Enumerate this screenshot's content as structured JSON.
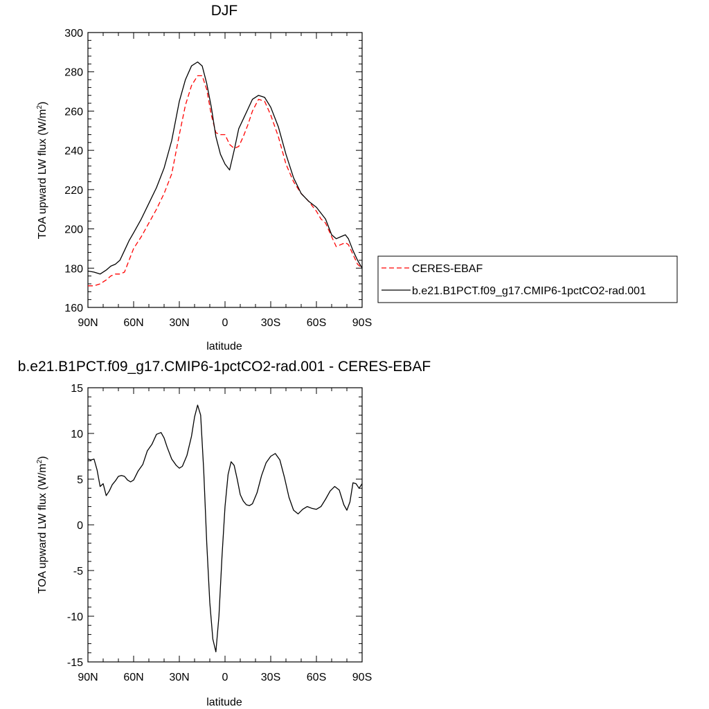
{
  "chart_data": [
    {
      "type": "line",
      "title": "DJF",
      "xlabel": "latitude",
      "ylabel": "TOA upward LW flux (W/m",
      "ylabel_sup": "2",
      "ylabel_close": ")",
      "xlim": [
        90,
        -90
      ],
      "ylim": [
        160,
        300
      ],
      "x_ticks": [
        90,
        60,
        30,
        0,
        -30,
        -60,
        -90
      ],
      "x_tick_labels": [
        "90N",
        "60N",
        "30N",
        "0",
        "30S",
        "60S",
        "90S"
      ],
      "y_ticks": [
        160,
        180,
        200,
        220,
        240,
        260,
        280,
        300
      ],
      "y_tick_labels": [
        "160",
        "180",
        "200",
        "220",
        "240",
        "260",
        "280",
        "300"
      ],
      "legend": "right",
      "series": [
        {
          "name": "CERES-EBAF",
          "color": "#ff0000",
          "dash": "dashed",
          "x": [
            90,
            86,
            82,
            78,
            75,
            72,
            69,
            66,
            63,
            60,
            55,
            50,
            45,
            40,
            35,
            30,
            26,
            22,
            18,
            15,
            12,
            9,
            6,
            3,
            0,
            -3,
            -6,
            -9,
            -12,
            -15,
            -18,
            -22,
            -26,
            -30,
            -35,
            -40,
            -45,
            -50,
            -55,
            -60,
            -63,
            -66,
            -70,
            -73,
            -76,
            -79,
            -81,
            -84,
            -87,
            -90
          ],
          "y": [
            171,
            171,
            172,
            174,
            176,
            177,
            177,
            178,
            184,
            190,
            196,
            203,
            210,
            218,
            228,
            248,
            263,
            273,
            278,
            278,
            271,
            258,
            249,
            248,
            248,
            243,
            241,
            242,
            247,
            253,
            260,
            266,
            265,
            258,
            247,
            233,
            224,
            218,
            214,
            209,
            205,
            203,
            196,
            191,
            192,
            193,
            192,
            187,
            182,
            180
          ]
        },
        {
          "name": "b.e21.B1PCT.f09_g17.CMIP6-1pctCO2-rad.001",
          "color": "#000000",
          "dash": "solid",
          "x": [
            90,
            86,
            82,
            78,
            75,
            72,
            69,
            66,
            63,
            60,
            55,
            50,
            45,
            40,
            35,
            30,
            26,
            22,
            18,
            15,
            12,
            9,
            6,
            3,
            0,
            -3,
            -6,
            -9,
            -12,
            -15,
            -18,
            -22,
            -26,
            -30,
            -35,
            -40,
            -45,
            -50,
            -55,
            -60,
            -63,
            -66,
            -70,
            -73,
            -76,
            -79,
            -81,
            -84,
            -87,
            -90
          ],
          "y": [
            178.5,
            178,
            177,
            179,
            181,
            182,
            184,
            189,
            194,
            198,
            205,
            213,
            221,
            231,
            245,
            265,
            276,
            283,
            285,
            283,
            274,
            262,
            247,
            238,
            233,
            230,
            240,
            251,
            256,
            261,
            266,
            268,
            267,
            262,
            252,
            238,
            226,
            218,
            214,
            211,
            208,
            205,
            197,
            195,
            196,
            197,
            195,
            189,
            184,
            180
          ]
        }
      ]
    },
    {
      "type": "line",
      "title": "b.e21.B1PCT.f09_g17.CMIP6-1pctCO2-rad.001 - CERES-EBAF",
      "xlabel": "latitude",
      "ylabel": "TOA upward LW flux (W/m",
      "ylabel_sup": "2",
      "ylabel_close": ")",
      "xlim": [
        90,
        -90
      ],
      "ylim": [
        -15,
        15
      ],
      "x_ticks": [
        90,
        60,
        30,
        0,
        -30,
        -60,
        -90
      ],
      "x_tick_labels": [
        "90N",
        "60N",
        "30N",
        "0",
        "30S",
        "60S",
        "90S"
      ],
      "y_ticks": [
        -15,
        -10,
        -5,
        0,
        5,
        10,
        15
      ],
      "y_tick_labels": [
        "-15",
        "-10",
        "-5",
        "0",
        "5",
        "10",
        "15"
      ],
      "series": [
        {
          "color": "#000000",
          "dash": "solid",
          "x": [
            90,
            88,
            86,
            84,
            82,
            80,
            78,
            76,
            74,
            72,
            70,
            68,
            66,
            64,
            62,
            60,
            57,
            54,
            51,
            48,
            45,
            42,
            40,
            38,
            35,
            32,
            30,
            28,
            25,
            22,
            20,
            18,
            16,
            14,
            12,
            10,
            8,
            6,
            4,
            2,
            0,
            -2,
            -4,
            -6,
            -8,
            -10,
            -12,
            -14,
            -16,
            -18,
            -21,
            -24,
            -27,
            -30,
            -33,
            -36,
            -39,
            -42,
            -45,
            -48,
            -51,
            -54,
            -57,
            -60,
            -63,
            -66,
            -69,
            -72,
            -75,
            -78,
            -80,
            -82,
            -84,
            -86,
            -88,
            -90
          ],
          "y": [
            7.2,
            7.1,
            7.2,
            6.0,
            4.2,
            4.5,
            3.2,
            3.7,
            4.4,
            4.8,
            5.3,
            5.4,
            5.3,
            4.9,
            4.7,
            4.9,
            5.9,
            6.6,
            8.1,
            8.8,
            9.9,
            10.1,
            9.5,
            8.5,
            7.2,
            6.5,
            6.2,
            6.4,
            7.6,
            9.7,
            11.8,
            13.1,
            12.0,
            6.0,
            -2.0,
            -8.5,
            -12.5,
            -13.9,
            -10.0,
            -3.5,
            2.0,
            5.5,
            6.9,
            6.5,
            5.0,
            3.3,
            2.6,
            2.2,
            2.1,
            2.3,
            3.5,
            5.4,
            6.8,
            7.5,
            7.8,
            7.1,
            5.2,
            3.0,
            1.6,
            1.2,
            1.7,
            2.0,
            1.8,
            1.7,
            2.0,
            2.8,
            3.7,
            4.2,
            3.8,
            2.2,
            1.6,
            2.5,
            4.6,
            4.5,
            4.0,
            4.5
          ]
        }
      ]
    }
  ]
}
